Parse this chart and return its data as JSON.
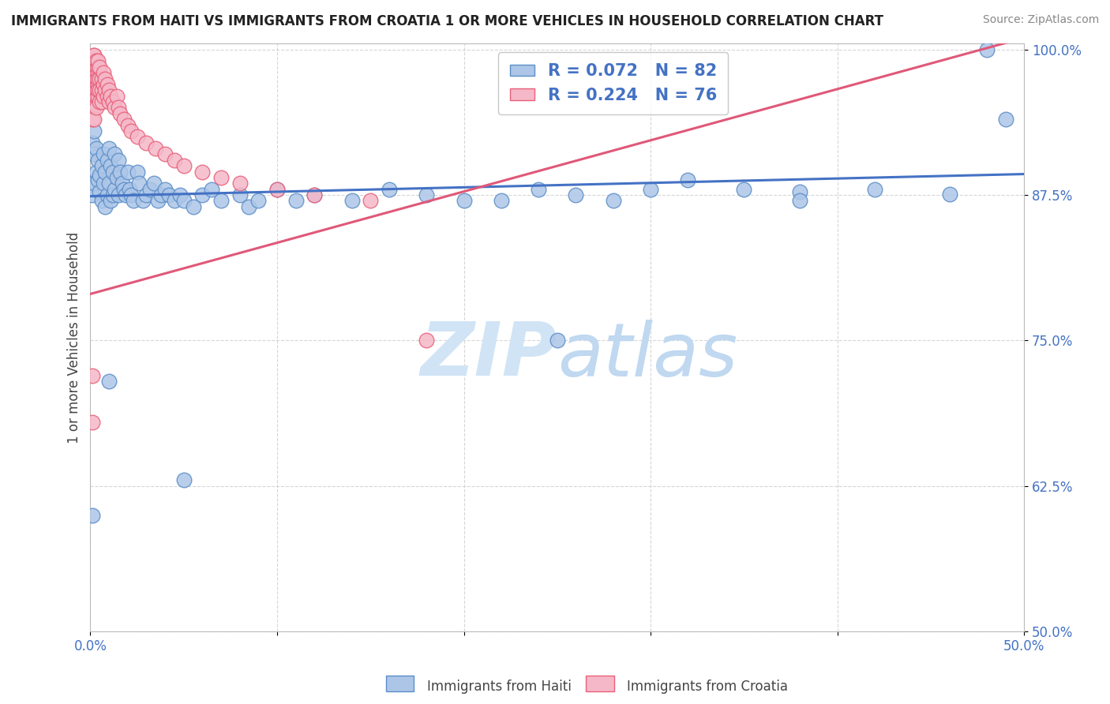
{
  "title": "IMMIGRANTS FROM HAITI VS IMMIGRANTS FROM CROATIA 1 OR MORE VEHICLES IN HOUSEHOLD CORRELATION CHART",
  "source": "Source: ZipAtlas.com",
  "ylabel": "1 or more Vehicles in Household",
  "xlim": [
    0.0,
    0.5
  ],
  "ylim": [
    0.5,
    1.005
  ],
  "haiti_color": "#adc6e8",
  "haiti_edge_color": "#5b8ec7",
  "croatia_color": "#f5b8c8",
  "croatia_edge_color": "#e8607a",
  "haiti_R": 0.072,
  "haiti_N": 82,
  "croatia_R": 0.224,
  "croatia_N": 76,
  "haiti_line_color": "#4472c4",
  "croatia_line_color": "#e05878",
  "tick_color": "#4472c4",
  "title_color": "#222222",
  "source_color": "#888888",
  "watermark_color": "#d0e4f5",
  "background_color": "#ffffff",
  "grid_color": "#cccccc",
  "haiti_x": [
    0.001,
    0.001,
    0.002,
    0.002,
    0.002,
    0.003,
    0.003,
    0.004,
    0.004,
    0.005,
    0.005,
    0.006,
    0.006,
    0.007,
    0.007,
    0.008,
    0.008,
    0.009,
    0.009,
    0.01,
    0.01,
    0.011,
    0.011,
    0.012,
    0.012,
    0.013,
    0.013,
    0.014,
    0.015,
    0.015,
    0.016,
    0.017,
    0.018,
    0.019,
    0.02,
    0.021,
    0.022,
    0.023,
    0.025,
    0.026,
    0.028,
    0.03,
    0.032,
    0.034,
    0.036,
    0.038,
    0.04,
    0.042,
    0.045,
    0.048,
    0.05,
    0.055,
    0.06,
    0.065,
    0.07,
    0.08,
    0.085,
    0.09,
    0.1,
    0.11,
    0.12,
    0.14,
    0.16,
    0.18,
    0.2,
    0.22,
    0.24,
    0.26,
    0.28,
    0.3,
    0.32,
    0.35,
    0.38,
    0.42,
    0.46,
    0.48,
    0.49,
    0.38,
    0.25,
    0.05,
    0.001,
    0.01
  ],
  "haiti_y": [
    0.92,
    0.875,
    0.91,
    0.885,
    0.93,
    0.895,
    0.915,
    0.888,
    0.905,
    0.892,
    0.878,
    0.9,
    0.87,
    0.91,
    0.885,
    0.895,
    0.865,
    0.905,
    0.875,
    0.915,
    0.885,
    0.9,
    0.87,
    0.895,
    0.875,
    0.91,
    0.88,
    0.89,
    0.905,
    0.875,
    0.895,
    0.885,
    0.88,
    0.875,
    0.895,
    0.88,
    0.875,
    0.87,
    0.895,
    0.885,
    0.87,
    0.875,
    0.88,
    0.885,
    0.87,
    0.875,
    0.88,
    0.875,
    0.87,
    0.875,
    0.87,
    0.865,
    0.875,
    0.88,
    0.87,
    0.875,
    0.865,
    0.87,
    0.88,
    0.87,
    0.875,
    0.87,
    0.88,
    0.875,
    0.87,
    0.87,
    0.88,
    0.875,
    0.87,
    0.88,
    0.888,
    0.88,
    0.878,
    0.88,
    0.876,
    1.0,
    0.94,
    0.87,
    0.75,
    0.63,
    0.6,
    0.715
  ],
  "croatia_x": [
    0.001,
    0.001,
    0.001,
    0.001,
    0.001,
    0.001,
    0.001,
    0.001,
    0.001,
    0.001,
    0.002,
    0.002,
    0.002,
    0.002,
    0.002,
    0.002,
    0.002,
    0.002,
    0.002,
    0.002,
    0.002,
    0.003,
    0.003,
    0.003,
    0.003,
    0.003,
    0.003,
    0.003,
    0.003,
    0.004,
    0.004,
    0.004,
    0.004,
    0.004,
    0.004,
    0.004,
    0.005,
    0.005,
    0.005,
    0.005,
    0.006,
    0.006,
    0.006,
    0.007,
    0.007,
    0.007,
    0.008,
    0.008,
    0.009,
    0.009,
    0.01,
    0.01,
    0.011,
    0.012,
    0.013,
    0.014,
    0.015,
    0.016,
    0.018,
    0.02,
    0.022,
    0.025,
    0.03,
    0.035,
    0.04,
    0.045,
    0.05,
    0.06,
    0.07,
    0.08,
    0.1,
    0.12,
    0.15,
    0.001,
    0.001,
    0.18
  ],
  "croatia_y": [
    0.97,
    0.96,
    0.95,
    0.98,
    0.94,
    0.99,
    0.985,
    0.975,
    0.965,
    0.955,
    0.985,
    0.975,
    0.965,
    0.995,
    0.99,
    0.98,
    0.97,
    0.96,
    0.95,
    0.94,
    0.995,
    0.98,
    0.97,
    0.96,
    0.985,
    0.975,
    0.965,
    0.99,
    0.95,
    0.98,
    0.97,
    0.96,
    0.985,
    0.975,
    0.965,
    0.99,
    0.975,
    0.965,
    0.985,
    0.955,
    0.975,
    0.965,
    0.955,
    0.97,
    0.96,
    0.98,
    0.965,
    0.975,
    0.96,
    0.97,
    0.965,
    0.955,
    0.96,
    0.955,
    0.95,
    0.96,
    0.95,
    0.945,
    0.94,
    0.935,
    0.93,
    0.925,
    0.92,
    0.915,
    0.91,
    0.905,
    0.9,
    0.895,
    0.89,
    0.885,
    0.88,
    0.875,
    0.87,
    0.72,
    0.68,
    0.75
  ]
}
